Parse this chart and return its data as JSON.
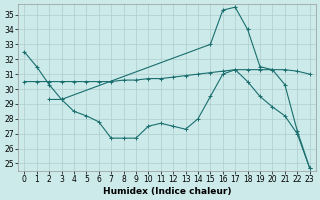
{
  "xlabel": "Humidex (Indice chaleur)",
  "bg_color": "#cceaea",
  "grid_color": "#b0cccc",
  "line_color": "#1a6e6e",
  "xlim": [
    -0.5,
    23.5
  ],
  "ylim": [
    24.5,
    35.7
  ],
  "yticks": [
    25,
    26,
    27,
    28,
    29,
    30,
    31,
    32,
    33,
    34,
    35
  ],
  "xticks": [
    0,
    1,
    2,
    3,
    4,
    5,
    6,
    7,
    8,
    9,
    10,
    11,
    12,
    13,
    14,
    15,
    16,
    17,
    18,
    19,
    20,
    21,
    22,
    23
  ],
  "curve1": {
    "x": [
      0,
      1,
      2,
      3,
      15,
      16,
      17,
      18,
      19,
      20,
      21,
      22,
      23
    ],
    "y": [
      32.5,
      31.5,
      30.3,
      29.3,
      33.0,
      35.3,
      35.5,
      34.0,
      31.5,
      31.3,
      30.3,
      27.2,
      24.7
    ]
  },
  "curve2": {
    "x": [
      0,
      1,
      2,
      3,
      4,
      5,
      6,
      7,
      8,
      9,
      10,
      11,
      12,
      13,
      14,
      15,
      16,
      17,
      18,
      19,
      20,
      21,
      22,
      23
    ],
    "y": [
      30.5,
      30.5,
      30.5,
      30.5,
      30.5,
      30.5,
      30.5,
      30.5,
      30.6,
      30.6,
      30.7,
      30.7,
      30.8,
      30.9,
      31.0,
      31.1,
      31.2,
      31.3,
      31.3,
      31.3,
      31.3,
      31.3,
      31.2,
      31.0
    ]
  },
  "curve3": {
    "x": [
      2,
      3,
      4,
      5,
      6,
      7,
      8,
      9,
      10,
      11,
      12,
      13,
      14,
      15,
      16,
      17,
      18,
      19,
      20,
      21,
      22,
      23
    ],
    "y": [
      29.3,
      29.3,
      28.5,
      28.2,
      27.8,
      26.7,
      26.7,
      26.7,
      27.5,
      27.7,
      27.5,
      27.3,
      28.0,
      29.5,
      31.0,
      31.3,
      30.5,
      29.5,
      28.8,
      28.2,
      27.0,
      24.7
    ]
  }
}
